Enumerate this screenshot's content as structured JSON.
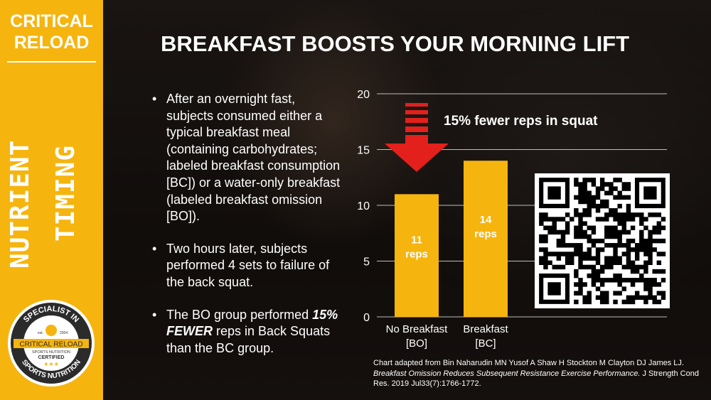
{
  "brand": {
    "line1": "CRITICAL",
    "line2": "RELOAD"
  },
  "sidebar": {
    "word1": "NUTRIENT",
    "word2": "TIMING"
  },
  "badge": {
    "top_text": "SPECIALIST IN",
    "bottom_text": "SPORTS NUTRITION",
    "est": "est.",
    "year": "2004",
    "name": "CRITICAL RELOAD",
    "sub": "SPORTS NUTRITION",
    "certified": "CERTIFIED",
    "stars": "★★★"
  },
  "title": "BREAKFAST BOOSTS YOUR MORNING LIFT",
  "bullets": {
    "b1": "After an overnight fast, subjects consumed either a typical breakfast meal (containing carbohydrates; labeled breakfast consumption [BC]) or a water-only breakfast (labeled breakfast omission [BO]).",
    "b2": "Two hours later, subjects performed 4 sets to failure of the back squat.",
    "b3_pre": "The BO group performed ",
    "b3_emph": "15% FEWER",
    "b3_post": " reps in Back Squats than the BC group."
  },
  "chart_data": {
    "type": "bar",
    "categories": [
      [
        "No Breakfast",
        "[BO]"
      ],
      [
        "Breakfast",
        "[BC]"
      ]
    ],
    "values": [
      11,
      14
    ],
    "data_labels": [
      [
        "11",
        "reps"
      ],
      [
        "14",
        "reps"
      ]
    ],
    "yticks": [
      "0",
      "5",
      "10",
      "15",
      "20"
    ],
    "ylim": [
      0,
      20
    ],
    "grid": true,
    "annotation": "15% fewer reps in squat",
    "colors": {
      "bar": "#f6b40e",
      "arrow": "#e3201c",
      "grid": "#bdbdbd",
      "text": "#ffffff"
    }
  },
  "citation": {
    "line1": "Chart adapted from Bin Naharudin MN Yusof A Shaw H Stockton M Clayton DJ James LJ.",
    "title": "Breakfast Omission Reduces Subsequent Resistance Exercise Performance.",
    "rest": " J Strength Cond Res. 2019 Jul33(7):1766-1772."
  },
  "qr_code": {
    "icon": "qr-code-icon"
  }
}
